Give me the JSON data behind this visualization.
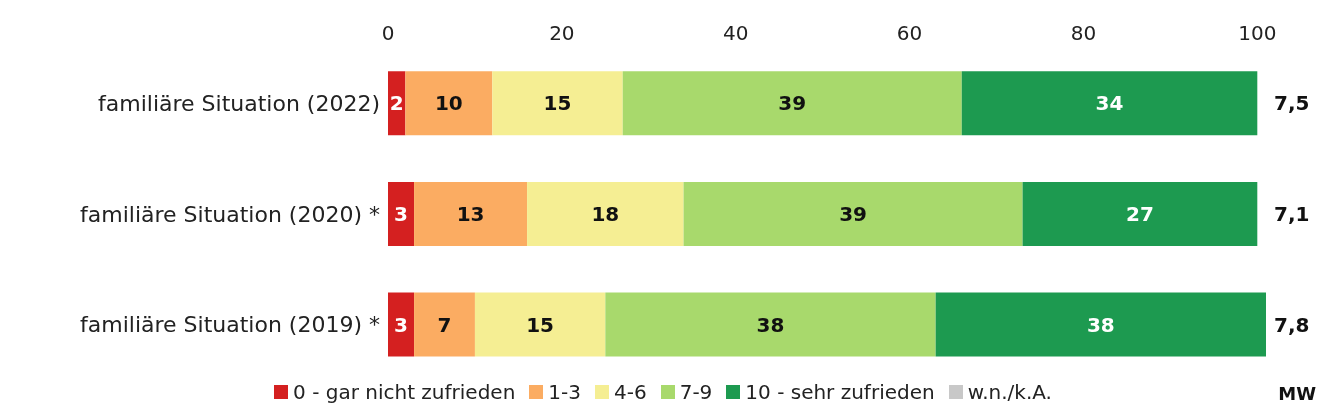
{
  "chart_data": {
    "type": "bar",
    "orientation": "horizontal",
    "stacked": true,
    "data_labels": true,
    "legend": "bottom",
    "categories": [
      "familiäre Situation (2022)",
      "familiäre Situation (2020) *",
      "familiäre Situation (2019) *"
    ],
    "series": [
      {
        "name": "0 - gar nicht zufrieden",
        "color": "#d42020",
        "values": [
          2,
          3,
          3
        ]
      },
      {
        "name": "1-3",
        "color": "#fbac62",
        "values": [
          10,
          13,
          7
        ]
      },
      {
        "name": "4-6",
        "color": "#f5ee93",
        "values": [
          15,
          18,
          15
        ]
      },
      {
        "name": "7-9",
        "color": "#a8d96c",
        "values": [
          39,
          39,
          38
        ]
      },
      {
        "name": "10 - sehr zufrieden",
        "color": "#1d9a50",
        "values": [
          34,
          27,
          38
        ]
      },
      {
        "name": "w.n./k.A.",
        "color": "#c8c8c8",
        "values": [
          null,
          null,
          null
        ]
      }
    ],
    "xlim": [
      0,
      101
    ],
    "xticks": [
      0,
      20,
      40,
      60,
      80,
      100
    ],
    "annotations": [
      "MW",
      "7,5",
      "7,1",
      "7,8"
    ]
  }
}
